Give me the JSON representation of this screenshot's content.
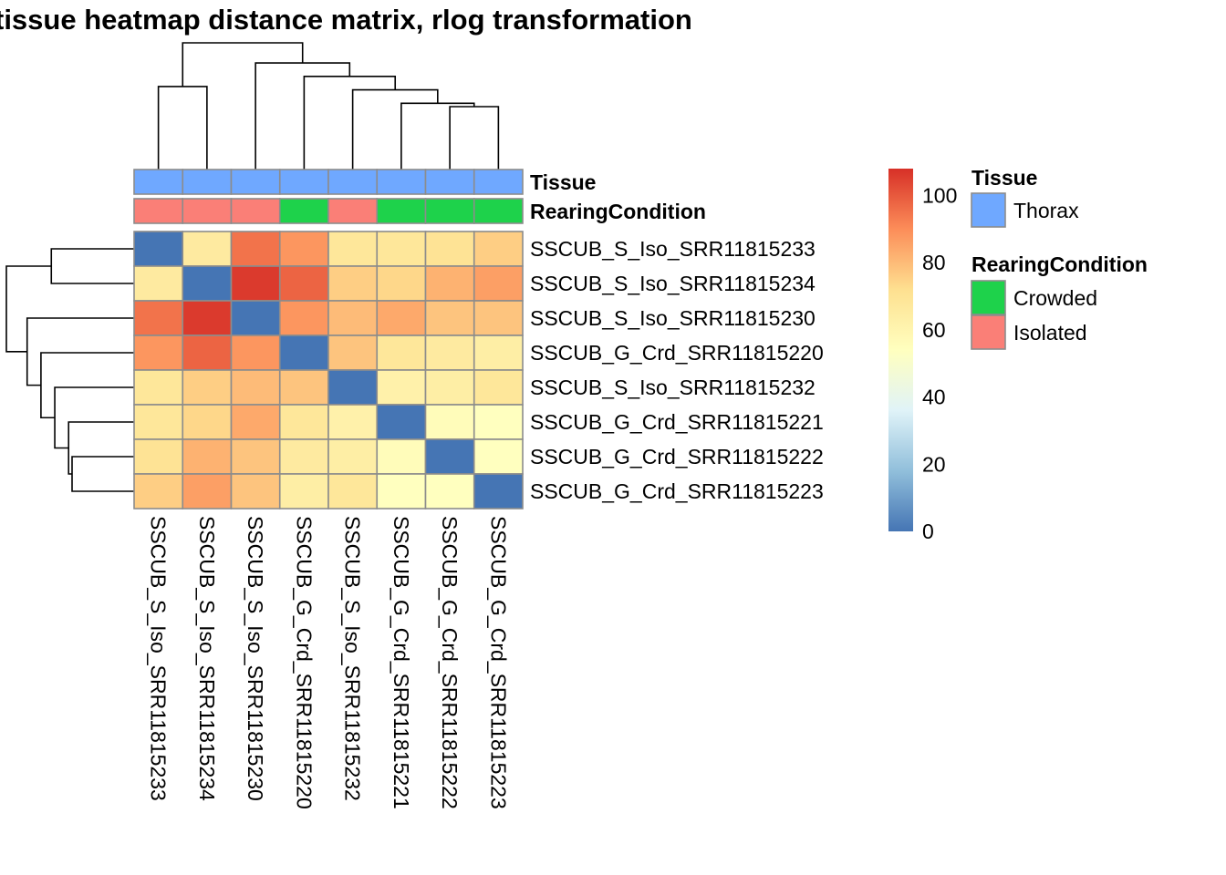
{
  "chart_data": {
    "type": "heatmap",
    "title": "tissue heatmap distance matrix, rlog transformation",
    "samples": [
      "SSCUB_S_Iso_SRR11815233",
      "SSCUB_S_Iso_SRR11815234",
      "SSCUB_S_Iso_SRR11815230",
      "SSCUB_G_Crd_SRR11815220",
      "SSCUB_S_Iso_SRR11815232",
      "SSCUB_G_Crd_SRR11815221",
      "SSCUB_G_Crd_SRR11815222",
      "SSCUB_G_Crd_SRR11815223"
    ],
    "matrix": [
      [
        0,
        66,
        95,
        88,
        68,
        68,
        70,
        76
      ],
      [
        66,
        0,
        106,
        98,
        76,
        74,
        82,
        86
      ],
      [
        95,
        106,
        0,
        88,
        80,
        84,
        78,
        78
      ],
      [
        88,
        98,
        88,
        0,
        78,
        68,
        66,
        64
      ],
      [
        68,
        76,
        80,
        78,
        0,
        62,
        64,
        68
      ],
      [
        68,
        74,
        84,
        68,
        62,
        0,
        56,
        54
      ],
      [
        70,
        82,
        78,
        66,
        64,
        56,
        0,
        54
      ],
      [
        76,
        86,
        78,
        64,
        68,
        54,
        54,
        0
      ]
    ],
    "annotations": {
      "Tissue": [
        "Thorax",
        "Thorax",
        "Thorax",
        "Thorax",
        "Thorax",
        "Thorax",
        "Thorax",
        "Thorax"
      ],
      "RearingCondition": [
        "Isolated",
        "Isolated",
        "Isolated",
        "Crowded",
        "Isolated",
        "Crowded",
        "Crowded",
        "Crowded"
      ]
    },
    "annotation_labels": [
      "Tissue",
      "RearingCondition"
    ],
    "annotation_colors": {
      "Tissue": {
        "Thorax": "#6fa8ff"
      },
      "RearingCondition": {
        "Crowded": "#1ed24b",
        "Isolated": "#fa7f77"
      }
    },
    "color_scale": {
      "min": 0,
      "max": 108,
      "ticks": [
        0,
        20,
        40,
        60,
        80,
        100
      ],
      "stops": [
        "#4575b4",
        "#91bfdb",
        "#e0f3f8",
        "#ffffbf",
        "#fee090",
        "#fc8d59",
        "#d73027"
      ]
    },
    "dendrogram_merges": [
      {
        "a": 6,
        "b": 7,
        "height": 54
      },
      {
        "a": 5,
        "b": "m0",
        "height": 56
      },
      {
        "a": 4,
        "b": "m1",
        "height": 64
      },
      {
        "a": 3,
        "b": "m2",
        "height": 72
      },
      {
        "a": 0,
        "b": 1,
        "height": 66
      },
      {
        "a": 2,
        "b": "m3",
        "height": 80
      },
      {
        "a": "m4",
        "b": "m5",
        "height": 92
      }
    ],
    "legend": {
      "tissue_title": "Tissue",
      "tissue_items": [
        "Thorax"
      ],
      "rearing_title": "RearingCondition",
      "rearing_items": [
        "Crowded",
        "Isolated"
      ]
    }
  }
}
